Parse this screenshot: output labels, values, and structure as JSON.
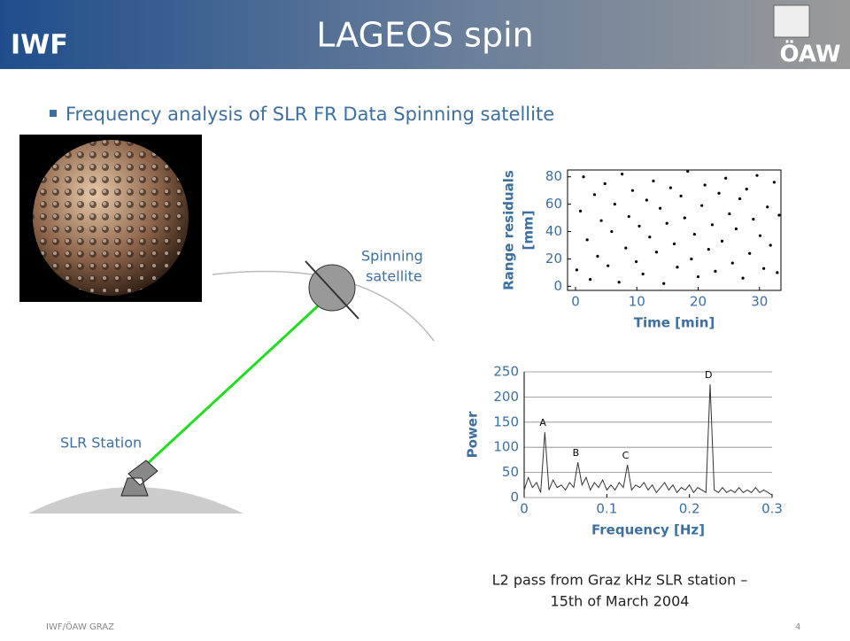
{
  "header": {
    "title": "LAGEOS spin",
    "left_logo": "IWF",
    "right_logo": "ÖAW"
  },
  "bullet": "Frequency analysis of SLR FR Data Spinning satellite",
  "diagram": {
    "satellite_label": [
      "Spinning",
      "satellite"
    ],
    "station_label": "SLR Station"
  },
  "caption": [
    "L2 pass from Graz kHz SLR station –",
    "15th of March 2004"
  ],
  "footer": {
    "left": "IWF/ÖAW GRAZ",
    "page": "4"
  },
  "chart_data": [
    {
      "type": "scatter",
      "xlabel": "Time [min]",
      "ylabel": [
        "Range residuals",
        "[mm]"
      ],
      "color": "#000000",
      "x": [
        0.2,
        0.8,
        1.3,
        1.9,
        2.4,
        3.1,
        3.6,
        4.2,
        4.8,
        5.3,
        5.9,
        6.4,
        7.1,
        7.6,
        8.2,
        8.7,
        9.3,
        9.9,
        10.4,
        11.0,
        11.6,
        12.1,
        12.7,
        13.2,
        13.8,
        14.4,
        14.9,
        15.5,
        16.1,
        16.6,
        17.2,
        17.8,
        18.3,
        18.9,
        19.4,
        20.0,
        20.6,
        21.1,
        21.7,
        22.3,
        22.8,
        23.4,
        23.9,
        24.5,
        25.1,
        25.6,
        26.2,
        26.8,
        27.3,
        27.9,
        28.4,
        29.0,
        29.6,
        30.1,
        30.7,
        31.3,
        31.8,
        32.4,
        32.9,
        33.2
      ],
      "values": [
        12,
        55,
        80,
        34,
        5,
        67,
        22,
        48,
        75,
        15,
        40,
        60,
        3,
        82,
        28,
        51,
        70,
        18,
        44,
        9,
        63,
        36,
        77,
        25,
        57,
        2,
        46,
        72,
        31,
        14,
        66,
        50,
        84,
        20,
        38,
        7,
        59,
        74,
        27,
        45,
        11,
        68,
        33,
        79,
        53,
        17,
        42,
        64,
        6,
        71,
        24,
        49,
        81,
        37,
        13,
        58,
        30,
        76,
        10,
        52
      ],
      "xlim": [
        -1.3,
        33.5
      ],
      "ylim": [
        -3,
        85
      ],
      "xticks": [
        0,
        10,
        20,
        30
      ],
      "yticks": [
        0,
        20,
        40,
        60,
        80
      ]
    },
    {
      "type": "line",
      "xlabel": "Frequency [Hz]",
      "ylabel": "Power",
      "color": "#333333",
      "grid": true,
      "x": [
        0,
        0.005,
        0.01,
        0.015,
        0.02,
        0.025,
        0.03,
        0.035,
        0.04,
        0.045,
        0.05,
        0.055,
        0.06,
        0.065,
        0.07,
        0.075,
        0.08,
        0.085,
        0.09,
        0.095,
        0.1,
        0.105,
        0.11,
        0.115,
        0.12,
        0.125,
        0.13,
        0.135,
        0.14,
        0.145,
        0.15,
        0.155,
        0.16,
        0.165,
        0.17,
        0.175,
        0.18,
        0.185,
        0.19,
        0.195,
        0.2,
        0.205,
        0.21,
        0.215,
        0.22,
        0.225,
        0.23,
        0.235,
        0.24,
        0.245,
        0.25,
        0.255,
        0.26,
        0.265,
        0.27,
        0.275,
        0.28,
        0.285,
        0.29,
        0.295,
        0.3
      ],
      "values": [
        15,
        40,
        20,
        30,
        10,
        130,
        15,
        35,
        20,
        25,
        15,
        30,
        20,
        70,
        25,
        40,
        15,
        30,
        20,
        35,
        15,
        25,
        15,
        30,
        20,
        65,
        15,
        25,
        20,
        30,
        15,
        25,
        10,
        20,
        30,
        15,
        25,
        10,
        20,
        15,
        25,
        10,
        20,
        15,
        10,
        225,
        15,
        10,
        20,
        10,
        15,
        10,
        20,
        10,
        15,
        10,
        20,
        10,
        15,
        10,
        5
      ],
      "annotations": [
        {
          "text": "A",
          "x": 0.025,
          "y": 130
        },
        {
          "text": "B",
          "x": 0.065,
          "y": 70
        },
        {
          "text": "C",
          "x": 0.125,
          "y": 65
        },
        {
          "text": "D",
          "x": 0.225,
          "y": 225
        }
      ],
      "xlim": [
        0,
        0.3
      ],
      "ylim": [
        0,
        250
      ],
      "xticks": [
        0,
        0.1,
        0.2,
        0.3
      ],
      "yticks": [
        0,
        50,
        100,
        150,
        200,
        250
      ]
    }
  ]
}
